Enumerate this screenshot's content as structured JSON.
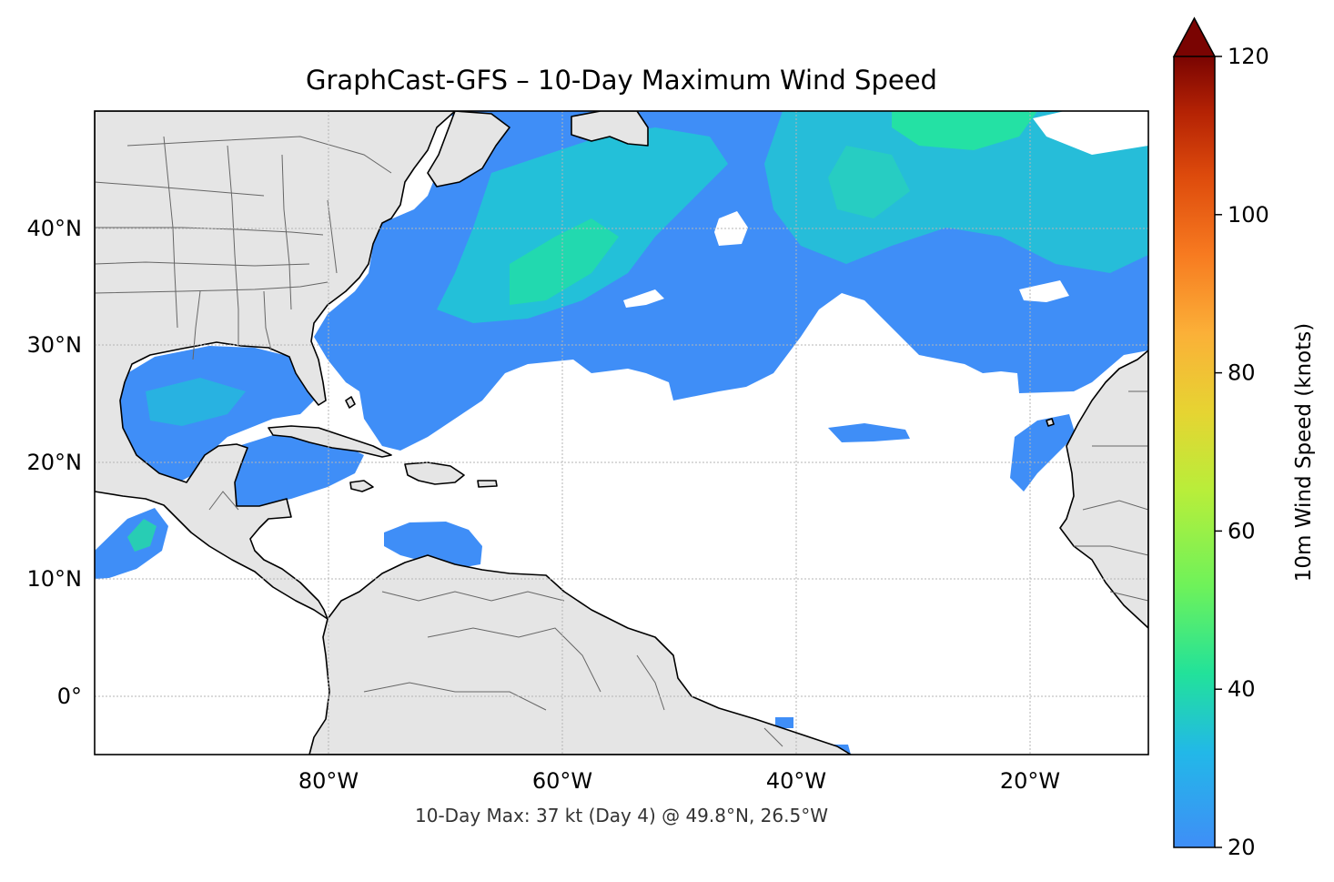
{
  "title": "GraphCast-GFS – 10-Day Maximum Wind Speed",
  "footer": "10-Day Max: 37 kt (Day 4) @ 49.8°N, 26.5°W",
  "colorbar": {
    "label": "10m Wind Speed (knots)",
    "min": 20,
    "max": 120,
    "extend": "max",
    "ticks": [
      "20",
      "40",
      "60",
      "80",
      "100",
      "120"
    ],
    "tick_values": [
      20,
      40,
      60,
      80,
      100,
      120
    ]
  },
  "map": {
    "lon_range": [
      -100,
      -10
    ],
    "lat_range": [
      -5,
      50
    ],
    "x_ticks": [
      "80°W",
      "60°W",
      "40°W",
      "20°W"
    ],
    "x_tick_values": [
      -80,
      -60,
      -40,
      -20
    ],
    "y_ticks": [
      "0°",
      "10°N",
      "20°N",
      "30°N",
      "40°N"
    ],
    "y_tick_values": [
      0,
      10,
      20,
      30,
      40
    ],
    "gridlines": true,
    "colors": {
      "land": "#e5e5e5",
      "ocean": "#ffffff",
      "coast": "#000000",
      "borders": "#666666",
      "wind_low": "#3f8ef7",
      "wind_mid": "#1fd0c8",
      "wind_high": "#24e89a"
    }
  },
  "chart_data": {
    "type": "heatmap",
    "title": "GraphCast-GFS – 10-Day Maximum Wind Speed",
    "value_label": "10m Wind Speed (knots)",
    "value_range": [
      20,
      120
    ],
    "max_value_kt": 37,
    "max_day": 4,
    "max_location": {
      "lat": 49.8,
      "lon": -26.5
    }
  }
}
